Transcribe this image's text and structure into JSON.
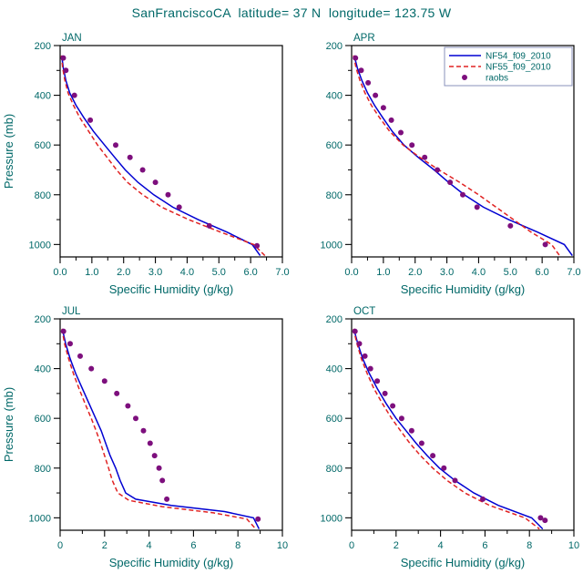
{
  "title": "SanFranciscoCA  latitude= 37 N  longitude= 123.75 W",
  "xlabel": "Specific Humidity (g/kg)",
  "ylabel": "Pressure (mb)",
  "colors": {
    "text": "#006868",
    "frame": "#000000",
    "nf54": "#0000d2",
    "nf55": "#e02222",
    "raobs": "#7d0f7d",
    "legend_border": "#8890bb",
    "background": "#ffffff"
  },
  "legend": {
    "position": "top-right-of-APR-panel",
    "entries": [
      {
        "label": "NF54_f09_2010",
        "type": "line",
        "color": "#0000d2",
        "dash": null
      },
      {
        "label": "NF55_f09_2010",
        "type": "line",
        "color": "#e02222",
        "dash": "5,3"
      },
      {
        "label": "raobs",
        "type": "dot",
        "color": "#7d0f7d"
      }
    ]
  },
  "chart_data": [
    {
      "type": "line",
      "title": "JAN",
      "xlabel": "Specific Humidity (g/kg)",
      "ylabel": "Pressure (mb)",
      "xlim": [
        0,
        7
      ],
      "xticks": [
        {
          "v": 0,
          "label": "0.0"
        },
        {
          "v": 1,
          "label": "1.0"
        },
        {
          "v": 2,
          "label": "2.0"
        },
        {
          "v": 3,
          "label": "3.0"
        },
        {
          "v": 4,
          "label": "4.0"
        },
        {
          "v": 5,
          "label": "5.0"
        },
        {
          "v": 6,
          "label": "6.0"
        },
        {
          "v": 7,
          "label": "7.0"
        }
      ],
      "ylim": [
        200,
        1050
      ],
      "yticks": [
        200,
        400,
        600,
        800,
        1000
      ],
      "y_axis_inverted": true,
      "grid": false,
      "show_ylabel": true,
      "legend": false,
      "series": [
        {
          "name": "NF54_f09_2010",
          "style": "solid",
          "color_key": "nf54",
          "points": [
            [
              0.05,
              240
            ],
            [
              0.1,
              290
            ],
            [
              0.18,
              340
            ],
            [
              0.3,
              390
            ],
            [
              0.5,
              440
            ],
            [
              0.75,
              490
            ],
            [
              1.05,
              545
            ],
            [
              1.4,
              600
            ],
            [
              1.72,
              650
            ],
            [
              2.05,
              700
            ],
            [
              2.45,
              750
            ],
            [
              2.95,
              800
            ],
            [
              3.55,
              850
            ],
            [
              4.35,
              900
            ],
            [
              5.25,
              950
            ],
            [
              6.05,
              1000
            ],
            [
              6.3,
              1045
            ]
          ]
        },
        {
          "name": "NF55_f09_2010",
          "style": "dashed",
          "color_key": "nf55",
          "points": [
            [
              0.04,
              240
            ],
            [
              0.08,
              290
            ],
            [
              0.15,
              340
            ],
            [
              0.25,
              390
            ],
            [
              0.42,
              440
            ],
            [
              0.62,
              490
            ],
            [
              0.9,
              545
            ],
            [
              1.18,
              600
            ],
            [
              1.48,
              650
            ],
            [
              1.78,
              700
            ],
            [
              2.12,
              750
            ],
            [
              2.6,
              800
            ],
            [
              3.2,
              850
            ],
            [
              4.05,
              900
            ],
            [
              5.05,
              950
            ],
            [
              6.1,
              1000
            ],
            [
              6.45,
              1045
            ]
          ]
        },
        {
          "name": "raobs",
          "style": "dots",
          "color_key": "raobs",
          "points": [
            [
              0.1,
              250
            ],
            [
              0.18,
              300
            ],
            [
              0.45,
              400
            ],
            [
              0.95,
              500
            ],
            [
              1.75,
              600
            ],
            [
              2.2,
              650
            ],
            [
              2.6,
              700
            ],
            [
              3.0,
              750
            ],
            [
              3.4,
              800
            ],
            [
              3.75,
              850
            ],
            [
              4.7,
              925
            ],
            [
              6.2,
              1005
            ]
          ]
        }
      ]
    },
    {
      "type": "line",
      "title": "APR",
      "xlabel": "Specific Humidity (g/kg)",
      "ylabel": "Pressure (mb)",
      "xlim": [
        0,
        7
      ],
      "xticks": [
        {
          "v": 0,
          "label": "0.0"
        },
        {
          "v": 1,
          "label": "1.0"
        },
        {
          "v": 2,
          "label": "2.0"
        },
        {
          "v": 3,
          "label": "3.0"
        },
        {
          "v": 4,
          "label": "4.0"
        },
        {
          "v": 5,
          "label": "5.0"
        },
        {
          "v": 6,
          "label": "6.0"
        },
        {
          "v": 7,
          "label": "7.0"
        }
      ],
      "ylim": [
        200,
        1050
      ],
      "yticks": [
        200,
        400,
        600,
        800,
        1000
      ],
      "y_axis_inverted": true,
      "grid": false,
      "show_ylabel": false,
      "legend": true,
      "series": [
        {
          "name": "NF54_f09_2010",
          "style": "solid",
          "color_key": "nf54",
          "points": [
            [
              0.08,
              240
            ],
            [
              0.18,
              290
            ],
            [
              0.32,
              340
            ],
            [
              0.5,
              390
            ],
            [
              0.72,
              440
            ],
            [
              0.98,
              490
            ],
            [
              1.28,
              545
            ],
            [
              1.65,
              600
            ],
            [
              2.1,
              650
            ],
            [
              2.6,
              700
            ],
            [
              3.05,
              750
            ],
            [
              3.55,
              800
            ],
            [
              4.15,
              850
            ],
            [
              4.95,
              900
            ],
            [
              5.85,
              950
            ],
            [
              6.7,
              1000
            ],
            [
              6.95,
              1045
            ]
          ]
        },
        {
          "name": "NF55_f09_2010",
          "style": "dashed",
          "color_key": "nf55",
          "points": [
            [
              0.06,
              240
            ],
            [
              0.14,
              290
            ],
            [
              0.26,
              340
            ],
            [
              0.42,
              390
            ],
            [
              0.62,
              440
            ],
            [
              0.88,
              490
            ],
            [
              1.2,
              545
            ],
            [
              1.62,
              600
            ],
            [
              2.15,
              650
            ],
            [
              2.75,
              700
            ],
            [
              3.4,
              750
            ],
            [
              4.0,
              800
            ],
            [
              4.55,
              850
            ],
            [
              5.1,
              900
            ],
            [
              5.65,
              950
            ],
            [
              6.3,
              1000
            ],
            [
              6.55,
              1045
            ]
          ]
        },
        {
          "name": "raobs",
          "style": "dots",
          "color_key": "raobs",
          "points": [
            [
              0.12,
              250
            ],
            [
              0.3,
              300
            ],
            [
              0.52,
              350
            ],
            [
              0.75,
              400
            ],
            [
              1.0,
              450
            ],
            [
              1.25,
              500
            ],
            [
              1.55,
              550
            ],
            [
              1.9,
              600
            ],
            [
              2.3,
              650
            ],
            [
              2.7,
              700
            ],
            [
              3.1,
              750
            ],
            [
              3.5,
              800
            ],
            [
              3.95,
              850
            ],
            [
              5.0,
              925
            ],
            [
              6.1,
              1000
            ]
          ]
        }
      ]
    },
    {
      "type": "line",
      "title": "JUL",
      "xlabel": "Specific Humidity (g/kg)",
      "ylabel": "Pressure (mb)",
      "xlim": [
        0,
        10
      ],
      "xticks": [
        {
          "v": 0,
          "label": "0"
        },
        {
          "v": 2,
          "label": "2"
        },
        {
          "v": 4,
          "label": "4"
        },
        {
          "v": 6,
          "label": "6"
        },
        {
          "v": 8,
          "label": "8"
        },
        {
          "v": 10,
          "label": "10"
        }
      ],
      "ylim": [
        200,
        1050
      ],
      "yticks": [
        200,
        400,
        600,
        800,
        1000
      ],
      "y_axis_inverted": true,
      "grid": false,
      "show_ylabel": true,
      "legend": false,
      "series": [
        {
          "name": "NF54_f09_2010",
          "style": "solid",
          "color_key": "nf54",
          "points": [
            [
              0.1,
              240
            ],
            [
              0.25,
              300
            ],
            [
              0.45,
              360
            ],
            [
              0.7,
              420
            ],
            [
              1.0,
              480
            ],
            [
              1.3,
              540
            ],
            [
              1.6,
              600
            ],
            [
              1.85,
              650
            ],
            [
              2.05,
              700
            ],
            [
              2.25,
              750
            ],
            [
              2.5,
              800
            ],
            [
              2.7,
              850
            ],
            [
              2.95,
              900
            ],
            [
              3.4,
              925
            ],
            [
              5.0,
              950
            ],
            [
              7.4,
              975
            ],
            [
              8.7,
              1000
            ],
            [
              8.95,
              1045
            ]
          ]
        },
        {
          "name": "NF55_f09_2010",
          "style": "dashed",
          "color_key": "nf55",
          "points": [
            [
              0.08,
              240
            ],
            [
              0.2,
              300
            ],
            [
              0.38,
              360
            ],
            [
              0.6,
              420
            ],
            [
              0.85,
              480
            ],
            [
              1.12,
              540
            ],
            [
              1.4,
              600
            ],
            [
              1.62,
              650
            ],
            [
              1.82,
              700
            ],
            [
              2.0,
              750
            ],
            [
              2.18,
              800
            ],
            [
              2.35,
              850
            ],
            [
              2.6,
              900
            ],
            [
              3.1,
              930
            ],
            [
              4.6,
              955
            ],
            [
              6.9,
              980
            ],
            [
              8.4,
              1005
            ],
            [
              8.8,
              1045
            ]
          ]
        },
        {
          "name": "raobs",
          "style": "dots",
          "color_key": "raobs",
          "points": [
            [
              0.15,
              250
            ],
            [
              0.45,
              300
            ],
            [
              0.9,
              350
            ],
            [
              1.4,
              400
            ],
            [
              2.0,
              450
            ],
            [
              2.55,
              500
            ],
            [
              3.05,
              550
            ],
            [
              3.4,
              600
            ],
            [
              3.75,
              650
            ],
            [
              4.05,
              700
            ],
            [
              4.25,
              750
            ],
            [
              4.45,
              800
            ],
            [
              4.6,
              850
            ],
            [
              4.8,
              925
            ],
            [
              8.9,
              1005
            ]
          ]
        }
      ]
    },
    {
      "type": "line",
      "title": "OCT",
      "xlabel": "Specific Humidity (g/kg)",
      "ylabel": "Pressure (mb)",
      "xlim": [
        0,
        10
      ],
      "xticks": [
        {
          "v": 0,
          "label": "0"
        },
        {
          "v": 2,
          "label": "2"
        },
        {
          "v": 4,
          "label": "4"
        },
        {
          "v": 6,
          "label": "6"
        },
        {
          "v": 8,
          "label": "8"
        },
        {
          "v": 10,
          "label": "10"
        }
      ],
      "ylim": [
        200,
        1050
      ],
      "yticks": [
        200,
        400,
        600,
        800,
        1000
      ],
      "y_axis_inverted": true,
      "grid": false,
      "show_ylabel": false,
      "legend": false,
      "series": [
        {
          "name": "NF54_f09_2010",
          "style": "solid",
          "color_key": "nf54",
          "points": [
            [
              0.1,
              240
            ],
            [
              0.28,
              300
            ],
            [
              0.5,
              360
            ],
            [
              0.8,
              420
            ],
            [
              1.15,
              480
            ],
            [
              1.55,
              540
            ],
            [
              2.0,
              600
            ],
            [
              2.45,
              650
            ],
            [
              2.9,
              700
            ],
            [
              3.4,
              750
            ],
            [
              3.95,
              800
            ],
            [
              4.65,
              850
            ],
            [
              5.5,
              900
            ],
            [
              6.6,
              950
            ],
            [
              8.1,
              1000
            ],
            [
              8.6,
              1045
            ]
          ]
        },
        {
          "name": "NF55_f09_2010",
          "style": "dashed",
          "color_key": "nf55",
          "points": [
            [
              0.08,
              240
            ],
            [
              0.24,
              300
            ],
            [
              0.44,
              360
            ],
            [
              0.7,
              420
            ],
            [
              1.0,
              480
            ],
            [
              1.38,
              540
            ],
            [
              1.8,
              600
            ],
            [
              2.2,
              650
            ],
            [
              2.62,
              700
            ],
            [
              3.1,
              750
            ],
            [
              3.65,
              800
            ],
            [
              4.3,
              850
            ],
            [
              5.1,
              900
            ],
            [
              6.2,
              950
            ],
            [
              7.8,
              1000
            ],
            [
              8.45,
              1045
            ]
          ]
        },
        {
          "name": "raobs",
          "style": "dots",
          "color_key": "raobs",
          "points": [
            [
              0.15,
              250
            ],
            [
              0.35,
              300
            ],
            [
              0.6,
              350
            ],
            [
              0.85,
              400
            ],
            [
              1.15,
              450
            ],
            [
              1.5,
              500
            ],
            [
              1.85,
              550
            ],
            [
              2.25,
              600
            ],
            [
              2.7,
              650
            ],
            [
              3.15,
              700
            ],
            [
              3.65,
              750
            ],
            [
              4.15,
              800
            ],
            [
              4.65,
              850
            ],
            [
              5.9,
              925
            ],
            [
              8.5,
              1000
            ],
            [
              8.7,
              1010
            ]
          ]
        }
      ]
    }
  ]
}
